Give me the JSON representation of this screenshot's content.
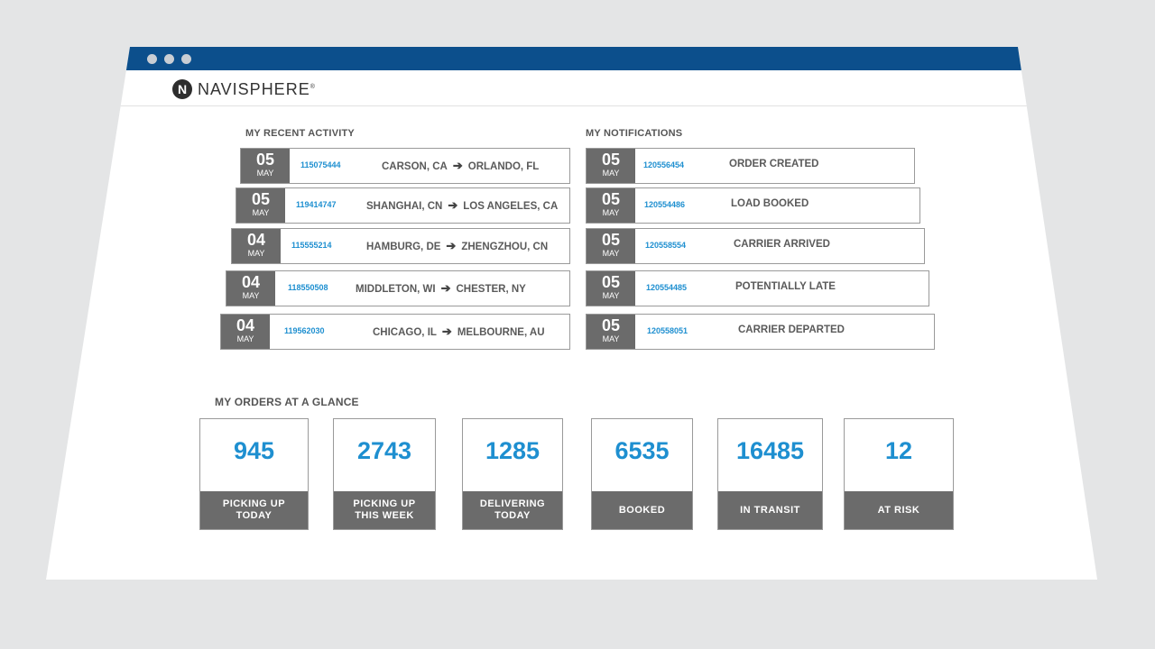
{
  "app": {
    "logo_mark": "N",
    "logo_text": "NAVISPHERE",
    "logo_reg": "®"
  },
  "recent_activity": {
    "title": "MY RECENT ACTIVITY",
    "items": [
      {
        "day": "05",
        "month": "MAY",
        "number": "115075444",
        "from": "CARSON, CA",
        "to": "ORLANDO, FL"
      },
      {
        "day": "05",
        "month": "MAY",
        "number": "119414747",
        "from": "SHANGHAI, CN",
        "to": "LOS ANGELES, CA"
      },
      {
        "day": "04",
        "month": "MAY",
        "number": "115555214",
        "from": "HAMBURG, DE",
        "to": "ZHENGZHOU, CN"
      },
      {
        "day": "04",
        "month": "MAY",
        "number": "118550508",
        "from": "MIDDLETON, WI",
        "to": "CHESTER, NY"
      },
      {
        "day": "04",
        "month": "MAY",
        "number": "119562030",
        "from": "CHICAGO, IL",
        "to": "MELBOURNE, AU"
      }
    ]
  },
  "notifications": {
    "title": "MY NOTIFICATIONS",
    "items": [
      {
        "day": "05",
        "month": "MAY",
        "number": "120556454",
        "status": "ORDER CREATED"
      },
      {
        "day": "05",
        "month": "MAY",
        "number": "120554486",
        "status": "LOAD BOOKED"
      },
      {
        "day": "05",
        "month": "MAY",
        "number": "120558554",
        "status": "CARRIER ARRIVED"
      },
      {
        "day": "05",
        "month": "MAY",
        "number": "120554485",
        "status": "POTENTIALLY LATE"
      },
      {
        "day": "05",
        "month": "MAY",
        "number": "120558051",
        "status": "CARRIER DEPARTED"
      }
    ]
  },
  "orders": {
    "title": "MY ORDERS AT A GLANCE",
    "cards": [
      {
        "value": "945",
        "label_line1": "PICKING UP",
        "label_line2": "TODAY"
      },
      {
        "value": "2743",
        "label_line1": "PICKING UP",
        "label_line2": "THIS WEEK"
      },
      {
        "value": "1285",
        "label_line1": "DELIVERING",
        "label_line2": "TODAY"
      },
      {
        "value": "6535",
        "label_line1": "BOOKED",
        "label_line2": ""
      },
      {
        "value": "16485",
        "label_line1": "IN TRANSIT",
        "label_line2": ""
      },
      {
        "value": "12",
        "label_line1": "AT RISK",
        "label_line2": ""
      }
    ]
  },
  "colors": {
    "titlebar": "#0c4f8c",
    "accent": "#1e8fd0",
    "date_block": "#6b6b6b"
  }
}
